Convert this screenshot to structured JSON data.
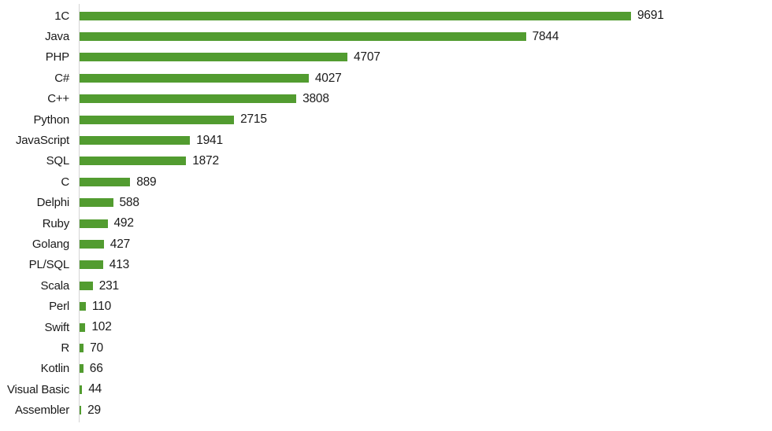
{
  "chart_data": {
    "type": "bar",
    "orientation": "horizontal",
    "title": "",
    "xlabel": "",
    "ylabel": "",
    "legend_position": "none",
    "grid": "none",
    "value_labels_shown": true,
    "categories": [
      "1C",
      "Java",
      "PHP",
      "C#",
      "C++",
      "Python",
      "JavaScript",
      "SQL",
      "C",
      "Delphi",
      "Ruby",
      "Golang",
      "PL/SQL",
      "Scala",
      "Perl",
      "Swift",
      "R",
      "Kotlin",
      "Visual Basic",
      "Assembler"
    ],
    "values": [
      9691,
      7844,
      4707,
      4027,
      3808,
      2715,
      1941,
      1872,
      889,
      588,
      492,
      427,
      413,
      231,
      110,
      102,
      70,
      66,
      44,
      29
    ],
    "colors": {
      "bar_color": "#529C30",
      "axis_line_color": "#d4d4d4",
      "text_color": "#1a1a1a",
      "background": "#ffffff"
    }
  }
}
